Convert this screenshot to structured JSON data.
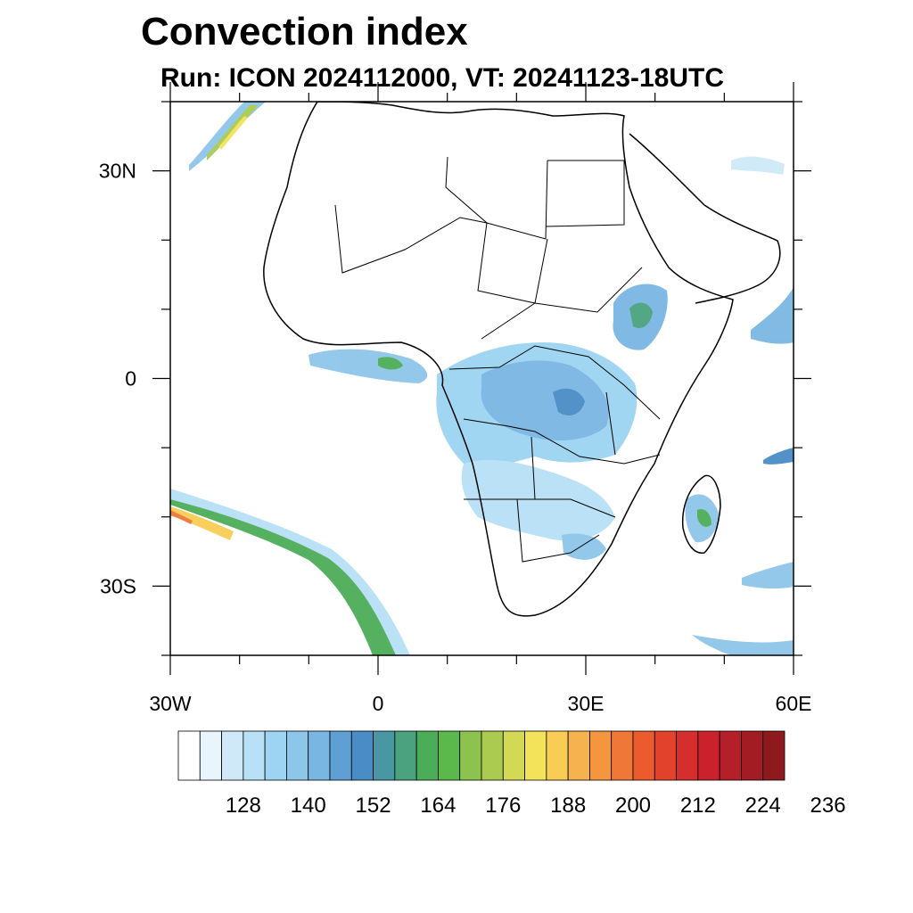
{
  "title": "Convection index",
  "subtitle": "Run: ICON 2024112000,  VT: 20241123-18UTC",
  "map": {
    "lon_range": [
      -30,
      60
    ],
    "lat_range": [
      -40,
      40
    ],
    "lat_labels": [
      {
        "lat": 30,
        "text": "30N"
      },
      {
        "lat": 0,
        "text": "0"
      },
      {
        "lat": -30,
        "text": "30S"
      }
    ],
    "lon_labels": [
      {
        "lon": -30,
        "text": "30W"
      },
      {
        "lon": 0,
        "text": "0"
      },
      {
        "lon": 30,
        "text": "30E"
      },
      {
        "lon": 60,
        "text": "60E"
      }
    ]
  },
  "colorbar": {
    "labels": [
      "128",
      "140",
      "152",
      "164",
      "176",
      "188",
      "200",
      "212",
      "224",
      "236"
    ],
    "colors": [
      "#ffffff",
      "#e8f5fc",
      "#cfe9f8",
      "#b8e0f6",
      "#9dd4f2",
      "#8ec6ea",
      "#7ab6e2",
      "#5e9fd4",
      "#4a8dc6",
      "#4a97a4",
      "#4aa37e",
      "#4cad58",
      "#5ab94a",
      "#8cc24e",
      "#aacb50",
      "#d4d955",
      "#f2e35a",
      "#f8cc55",
      "#f6b24e",
      "#f49640",
      "#ef7838",
      "#ea5c2e",
      "#e2422c",
      "#d62e2c",
      "#c9222c",
      "#b51f2a",
      "#a31c24",
      "#8e1a1e"
    ]
  }
}
